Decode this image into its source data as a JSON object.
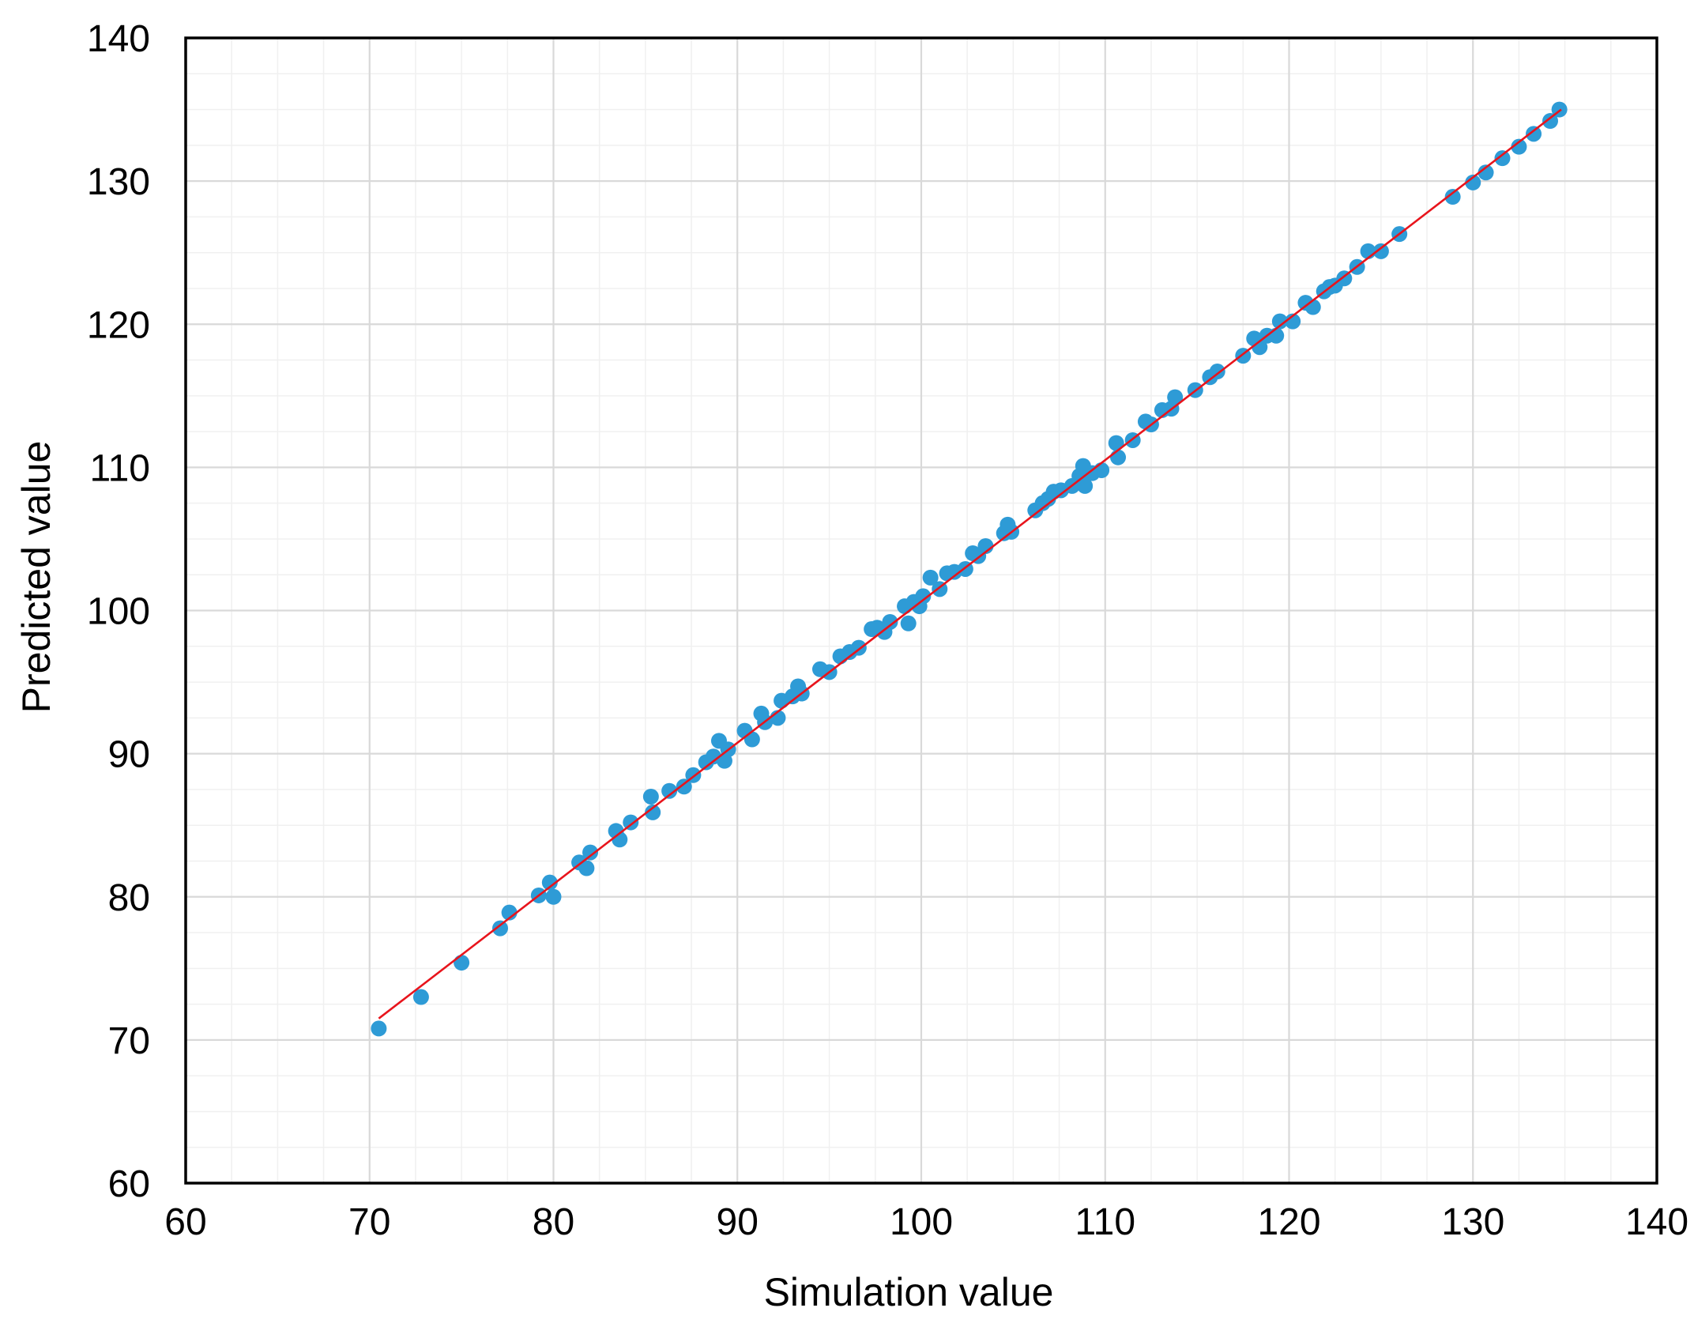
{
  "chart_data": {
    "type": "scatter",
    "title": "",
    "xlabel": "Simulation value",
    "ylabel": "Predicted value",
    "xlim": [
      60,
      140
    ],
    "ylim": [
      60,
      140
    ],
    "xticks": [
      "60",
      "70",
      "80",
      "90",
      "100",
      "110",
      "120",
      "130",
      "140"
    ],
    "yticks": [
      "60",
      "70",
      "80",
      "90",
      "100",
      "110",
      "120",
      "130",
      "140"
    ],
    "grid": "major and minor",
    "legend": "none",
    "colors": {
      "points": "#2e9bd6",
      "fit_line": "#e8141c",
      "major_grid": "#d9d9d9",
      "minor_grid": "#f0f0f0"
    },
    "fit_line": {
      "x": [
        70.5,
        134.8
      ],
      "y": [
        71.5,
        135.0
      ]
    },
    "series": [
      {
        "points": [
          [
            70.5,
            70.8
          ],
          [
            72.8,
            73.0
          ],
          [
            75.0,
            75.4
          ],
          [
            77.1,
            77.8
          ],
          [
            77.6,
            78.9
          ],
          [
            79.2,
            80.1
          ],
          [
            79.8,
            81.0
          ],
          [
            80.0,
            80.0
          ],
          [
            81.4,
            82.4
          ],
          [
            81.8,
            82.0
          ],
          [
            82.0,
            83.1
          ],
          [
            83.4,
            84.6
          ],
          [
            83.6,
            84.0
          ],
          [
            84.2,
            85.2
          ],
          [
            85.3,
            87.0
          ],
          [
            85.4,
            85.9
          ],
          [
            86.3,
            87.4
          ],
          [
            87.1,
            87.7
          ],
          [
            87.6,
            88.5
          ],
          [
            88.3,
            89.4
          ],
          [
            88.7,
            89.8
          ],
          [
            89.0,
            90.9
          ],
          [
            89.3,
            89.5
          ],
          [
            89.5,
            90.3
          ],
          [
            90.4,
            91.6
          ],
          [
            90.8,
            91.0
          ],
          [
            91.3,
            92.8
          ],
          [
            91.5,
            92.2
          ],
          [
            92.2,
            92.5
          ],
          [
            92.4,
            93.7
          ],
          [
            93.0,
            94.0
          ],
          [
            93.3,
            94.7
          ],
          [
            93.5,
            94.2
          ],
          [
            94.5,
            95.9
          ],
          [
            95.0,
            95.7
          ],
          [
            95.6,
            96.8
          ],
          [
            96.1,
            97.1
          ],
          [
            96.6,
            97.4
          ],
          [
            97.3,
            98.7
          ],
          [
            97.6,
            98.8
          ],
          [
            98.0,
            98.5
          ],
          [
            98.3,
            99.2
          ],
          [
            99.1,
            100.3
          ],
          [
            99.3,
            99.1
          ],
          [
            99.6,
            100.6
          ],
          [
            99.9,
            100.3
          ],
          [
            100.1,
            101.0
          ],
          [
            100.5,
            102.3
          ],
          [
            101.0,
            101.5
          ],
          [
            101.4,
            102.6
          ],
          [
            101.8,
            102.7
          ],
          [
            102.4,
            102.9
          ],
          [
            102.8,
            104.0
          ],
          [
            103.1,
            103.8
          ],
          [
            103.5,
            104.5
          ],
          [
            104.5,
            105.4
          ],
          [
            104.7,
            106.0
          ],
          [
            104.9,
            105.5
          ],
          [
            106.2,
            107.0
          ],
          [
            106.6,
            107.5
          ],
          [
            106.9,
            107.8
          ],
          [
            107.2,
            108.3
          ],
          [
            107.6,
            108.4
          ],
          [
            108.2,
            108.7
          ],
          [
            108.6,
            109.4
          ],
          [
            108.8,
            110.1
          ],
          [
            108.9,
            108.7
          ],
          [
            109.3,
            109.6
          ],
          [
            109.8,
            109.8
          ],
          [
            110.6,
            111.7
          ],
          [
            110.7,
            110.7
          ],
          [
            111.5,
            111.9
          ],
          [
            112.2,
            113.2
          ],
          [
            112.5,
            113.0
          ],
          [
            113.1,
            114.0
          ],
          [
            113.6,
            114.1
          ],
          [
            113.8,
            114.9
          ],
          [
            114.9,
            115.4
          ],
          [
            115.7,
            116.3
          ],
          [
            116.1,
            116.7
          ],
          [
            117.5,
            117.8
          ],
          [
            118.1,
            119.0
          ],
          [
            118.4,
            118.4
          ],
          [
            118.8,
            119.2
          ],
          [
            119.3,
            119.2
          ],
          [
            119.5,
            120.2
          ],
          [
            120.2,
            120.2
          ],
          [
            120.9,
            121.5
          ],
          [
            121.3,
            121.2
          ],
          [
            121.9,
            122.3
          ],
          [
            122.2,
            122.6
          ],
          [
            122.5,
            122.7
          ],
          [
            123.0,
            123.2
          ],
          [
            123.7,
            124.0
          ],
          [
            124.3,
            125.1
          ],
          [
            125.0,
            125.1
          ],
          [
            126.0,
            126.3
          ],
          [
            128.9,
            128.9
          ],
          [
            130.0,
            129.9
          ],
          [
            130.7,
            130.6
          ],
          [
            131.6,
            131.6
          ],
          [
            132.5,
            132.4
          ],
          [
            133.3,
            133.3
          ],
          [
            134.2,
            134.2
          ],
          [
            134.7,
            135.0
          ]
        ]
      }
    ]
  }
}
